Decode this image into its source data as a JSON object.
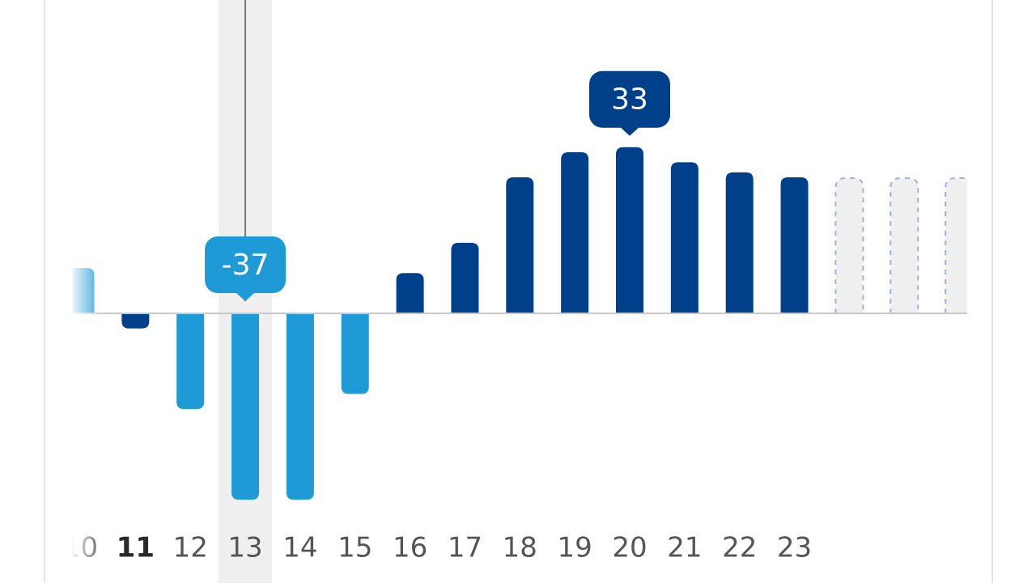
{
  "chart_data": {
    "type": "bar",
    "categories": [
      "10",
      "11",
      "12",
      "13",
      "14",
      "15",
      "16",
      "17",
      "18",
      "19",
      "20",
      "21",
      "22",
      "23",
      null,
      null,
      null
    ],
    "values": [
      9,
      -3,
      -19,
      -37,
      -37,
      -16,
      8,
      14,
      27,
      32,
      33,
      30,
      28,
      27,
      null,
      null,
      null
    ],
    "colors": [
      "#1e9ad6",
      "#003f8a",
      "#1e9ad6",
      "#1e9ad6",
      "#1e9ad6",
      "#1e9ad6",
      "#003f8a",
      "#003f8a",
      "#003f8a",
      "#003f8a",
      "#003f8a",
      "#003f8a",
      "#003f8a",
      "#003f8a",
      null,
      null,
      null
    ],
    "current_index": 1,
    "selected_index": 3,
    "peak_index": 10
  }
}
